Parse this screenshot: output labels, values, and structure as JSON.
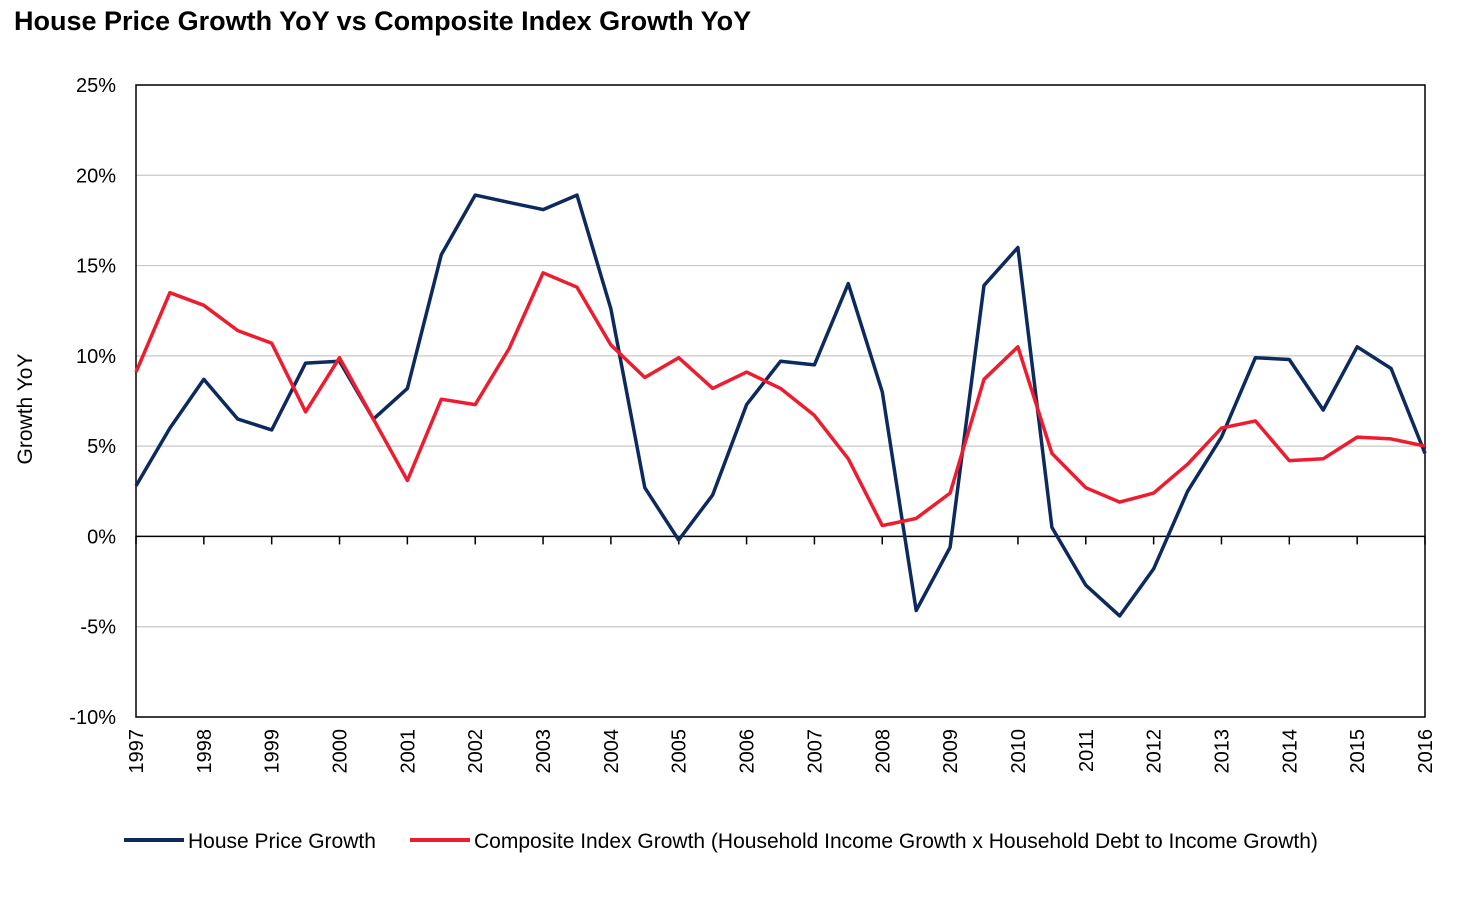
{
  "chart_data": {
    "type": "line",
    "title": "House Price Growth YoY vs Composite Index Growth YoY",
    "xlabel": "",
    "ylabel": "Growth YoY",
    "ylim": [
      -10,
      25
    ],
    "y_ticks": [
      -10,
      -5,
      0,
      5,
      10,
      15,
      20,
      25
    ],
    "y_tick_labels": [
      "-10%",
      "-5%",
      "0%",
      "5%",
      "10%",
      "15%",
      "20%",
      "25%"
    ],
    "x_tick_labels": [
      "1997",
      "1998",
      "1999",
      "2000",
      "2001",
      "2002",
      "2003",
      "2004",
      "2005",
      "2006",
      "2007",
      "2008",
      "2009",
      "2010",
      "2011",
      "2012",
      "2013",
      "2014",
      "2015",
      "2016"
    ],
    "xlim": [
      1997,
      2016
    ],
    "grid": "horizontal",
    "legend_position": "bottom",
    "x": [
      1997,
      1997.5,
      1998,
      1998.5,
      1999,
      1999.5,
      2000,
      2000.5,
      2001,
      2001.5,
      2002,
      2002.5,
      2003,
      2003.5,
      2004,
      2004.5,
      2005,
      2005.5,
      2006,
      2006.5,
      2007,
      2007.5,
      2008,
      2008.5,
      2009,
      2009.5,
      2010,
      2010.5,
      2011,
      2011.5,
      2012,
      2012.5,
      2013,
      2013.5,
      2014,
      2014.5,
      2015,
      2015.5,
      2016
    ],
    "series": [
      {
        "name": "House Price Growth",
        "color": "#0d2a5f",
        "values": [
          2.8,
          6.0,
          8.7,
          6.5,
          5.9,
          9.6,
          9.7,
          6.5,
          8.2,
          15.6,
          18.9,
          18.5,
          18.1,
          18.9,
          12.6,
          2.7,
          -0.2,
          2.3,
          7.3,
          9.7,
          9.5,
          14.0,
          8.0,
          -4.1,
          -0.6,
          13.9,
          16.0,
          0.5,
          -2.7,
          -4.4,
          -1.8,
          2.5,
          5.5,
          9.9,
          9.8,
          7.0,
          10.5,
          9.3,
          4.6
        ]
      },
      {
        "name": "Composite Index Growth (Household Income Growth x Household Debt to Income Growth)",
        "color": "#ee1c2e",
        "values": [
          9.1,
          13.5,
          12.8,
          11.4,
          10.7,
          6.9,
          9.9,
          6.5,
          3.1,
          7.6,
          7.3,
          10.4,
          14.6,
          13.8,
          10.6,
          8.8,
          9.9,
          8.2,
          9.1,
          8.2,
          6.7,
          4.3,
          0.6,
          1.0,
          2.4,
          8.7,
          10.5,
          4.6,
          2.7,
          1.9,
          2.4,
          4.0,
          6.0,
          6.4,
          4.2,
          4.3,
          5.5,
          5.4,
          5.0
        ]
      }
    ]
  }
}
